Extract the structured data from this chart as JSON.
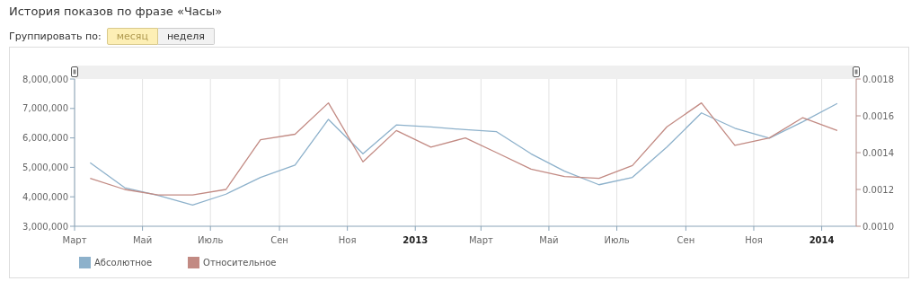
{
  "chart_data": {
    "type": "line",
    "title": "История показов по фразе «Часы»",
    "annotations": [
      "Группировать по:",
      "месяц",
      "неделя"
    ],
    "x": [
      "2012-03-15",
      "2012-04-15",
      "2012-05-15",
      "2012-06-15",
      "2012-07-15",
      "2012-08-15",
      "2012-09-15",
      "2012-10-15",
      "2012-11-15",
      "2012-12-15",
      "2013-01-15",
      "2013-02-15",
      "2013-03-15",
      "2013-04-15",
      "2013-05-15",
      "2013-06-15",
      "2013-07-15",
      "2013-08-15",
      "2013-09-15",
      "2013-10-15",
      "2013-11-15",
      "2013-12-15",
      "2014-01-15"
    ],
    "series": [
      {
        "name": "Абсолютное",
        "color": "#8db1cb",
        "values": [
          5160000,
          4310000,
          4050000,
          3720000,
          4090000,
          4660000,
          5080000,
          6630000,
          5460000,
          6440000,
          6370000,
          6280000,
          6210000,
          5460000,
          4870000,
          4410000,
          4660000,
          5690000,
          6850000,
          6330000,
          5990000,
          6550000,
          7170000
        ]
      },
      {
        "name": "Относительное",
        "color": "#c28a83",
        "axis": "y2",
        "values": [
          0.00126,
          0.0012,
          0.00117,
          0.00117,
          0.0012,
          0.00147,
          0.0015,
          0.00167,
          0.00135,
          0.00152,
          0.00143,
          0.00148,
          0.0014,
          0.00131,
          0.00127,
          0.00126,
          0.00133,
          0.00154,
          0.00167,
          0.00144,
          0.00148,
          0.00159,
          0.00152
        ]
      }
    ],
    "xlim": [
      "2012-03-01",
      "2014-02-01"
    ],
    "xticks": [
      {
        "value": "2012-03-01",
        "label": "Март"
      },
      {
        "value": "2012-05-01",
        "label": "Май"
      },
      {
        "value": "2012-07-01",
        "label": "Июль"
      },
      {
        "value": "2012-09-01",
        "label": "Сен"
      },
      {
        "value": "2012-11-01",
        "label": "Ноя"
      },
      {
        "value": "2013-01-01",
        "label": "2013"
      },
      {
        "value": "2013-03-01",
        "label": "Март"
      },
      {
        "value": "2013-05-01",
        "label": "Май"
      },
      {
        "value": "2013-07-01",
        "label": "Июль"
      },
      {
        "value": "2013-09-01",
        "label": "Сен"
      },
      {
        "value": "2013-11-01",
        "label": "Ноя"
      },
      {
        "value": "2014-01-01",
        "label": "2014"
      }
    ],
    "ylim": [
      3000000,
      8000000
    ],
    "yticks": [
      {
        "value": 3000000,
        "label": "3,000,000"
      },
      {
        "value": 4000000,
        "label": "4,000,000"
      },
      {
        "value": 5000000,
        "label": "5,000,000"
      },
      {
        "value": 6000000,
        "label": "6,000,000"
      },
      {
        "value": 7000000,
        "label": "7,000,000"
      },
      {
        "value": 8000000,
        "label": "8,000,000"
      }
    ],
    "y2lim": [
      0.001,
      0.0018
    ],
    "y2ticks": [
      {
        "value": 0.001,
        "label": "0.0010"
      },
      {
        "value": 0.0012,
        "label": "0.0012"
      },
      {
        "value": 0.0014,
        "label": "0.0014"
      },
      {
        "value": 0.0016,
        "label": "0.0016"
      },
      {
        "value": 0.0018,
        "label": "0.0018"
      }
    ],
    "grid": "x",
    "legend": "bottom left",
    "marker": "none",
    "line_style": "solid"
  }
}
